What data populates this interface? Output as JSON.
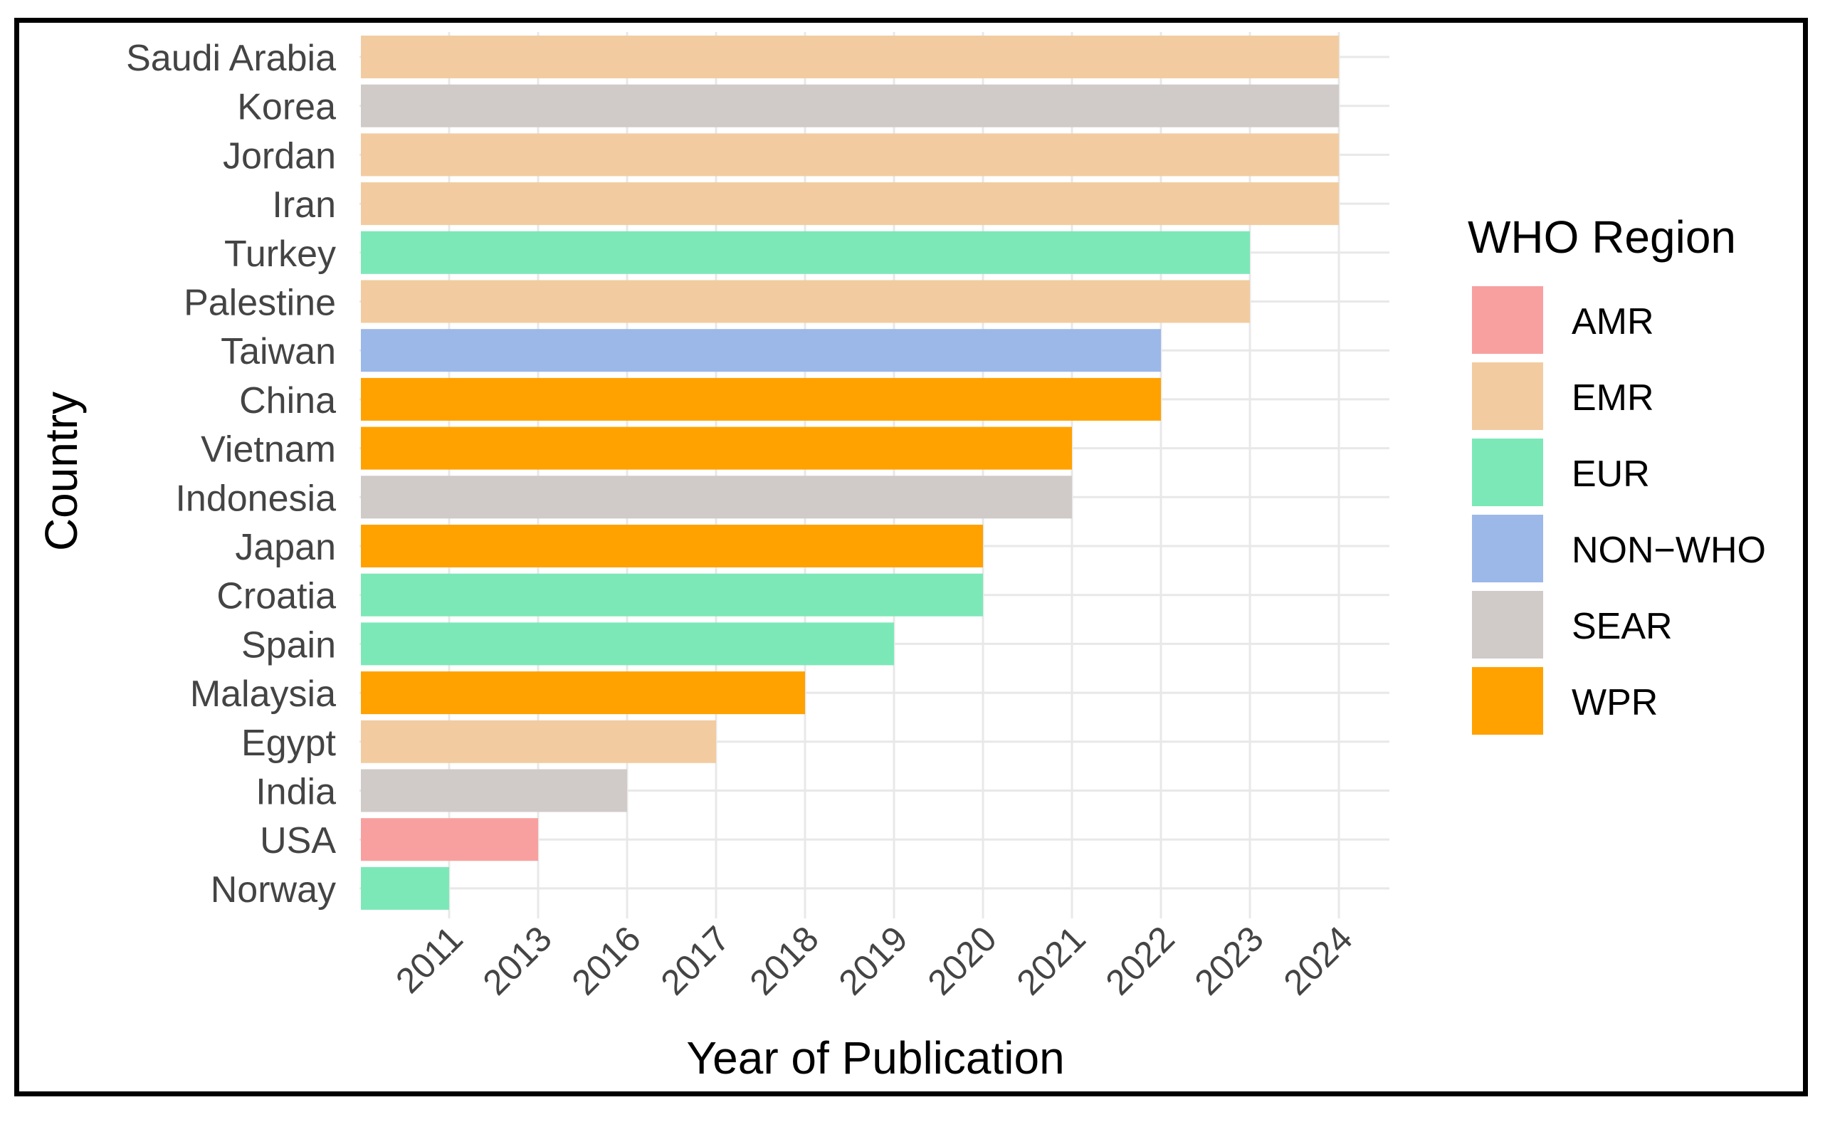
{
  "chart_data": {
    "type": "bar",
    "orientation": "horizontal",
    "title": "",
    "xlabel": "Year of Publication",
    "ylabel": "Country",
    "x_ticks": [
      "2011",
      "2013",
      "2016",
      "2017",
      "2018",
      "2019",
      "2020",
      "2021",
      "2022",
      "2023",
      "2024"
    ],
    "x_scale": "categorical-ordered",
    "grid": true,
    "legend": {
      "title": "WHO Region",
      "placement": "right",
      "entries": [
        {
          "label": "AMR",
          "color": "#F8A0A0"
        },
        {
          "label": "EMR",
          "color": "#F2CCA0"
        },
        {
          "label": "EUR",
          "color": "#7CE8B8"
        },
        {
          "label": "NON−WHO",
          "color": "#9BB8E8"
        },
        {
          "label": "SEAR",
          "color": "#D0CBC8"
        },
        {
          "label": "WPR",
          "color": "#FFA200"
        }
      ]
    },
    "bars": [
      {
        "country": "Saudi Arabia",
        "year": "2024",
        "region": "EMR"
      },
      {
        "country": "Korea",
        "year": "2024",
        "region": "SEAR"
      },
      {
        "country": "Jordan",
        "year": "2024",
        "region": "EMR"
      },
      {
        "country": "Iran",
        "year": "2024",
        "region": "EMR"
      },
      {
        "country": "Turkey",
        "year": "2023",
        "region": "EUR"
      },
      {
        "country": "Palestine",
        "year": "2023",
        "region": "EMR"
      },
      {
        "country": "Taiwan",
        "year": "2022",
        "region": "NON−WHO"
      },
      {
        "country": "China",
        "year": "2022",
        "region": "WPR"
      },
      {
        "country": "Vietnam",
        "year": "2021",
        "region": "WPR"
      },
      {
        "country": "Indonesia",
        "year": "2021",
        "region": "SEAR"
      },
      {
        "country": "Japan",
        "year": "2020",
        "region": "WPR"
      },
      {
        "country": "Croatia",
        "year": "2020",
        "region": "EUR"
      },
      {
        "country": "Spain",
        "year": "2019",
        "region": "EUR"
      },
      {
        "country": "Malaysia",
        "year": "2018",
        "region": "WPR"
      },
      {
        "country": "Egypt",
        "year": "2017",
        "region": "EMR"
      },
      {
        "country": "India",
        "year": "2016",
        "region": "SEAR"
      },
      {
        "country": "USA",
        "year": "2013",
        "region": "AMR"
      },
      {
        "country": "Norway",
        "year": "2011",
        "region": "EUR"
      }
    ]
  }
}
